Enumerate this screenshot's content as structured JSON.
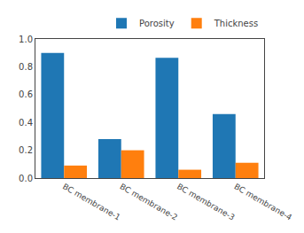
{
  "chart_data": {
    "type": "bar",
    "categories": [
      "BC membrane-1",
      "BC membrane-2",
      "BC membrane-3",
      "BC membrane-4"
    ],
    "series": [
      {
        "name": "Porosity",
        "values": [
          0.9,
          0.28,
          0.865,
          0.46
        ]
      },
      {
        "name": "Thickness",
        "values": [
          0.09,
          0.2,
          0.06,
          0.11
        ]
      }
    ],
    "ylim": [
      0.0,
      1.0
    ],
    "yticks": [
      {
        "value": 0,
        "label": "0.0"
      },
      0.2,
      0.4,
      0.6,
      0.8,
      {
        "value": 1,
        "label": "1.0"
      }
    ],
    "grid": false,
    "legend": "upper right"
  }
}
